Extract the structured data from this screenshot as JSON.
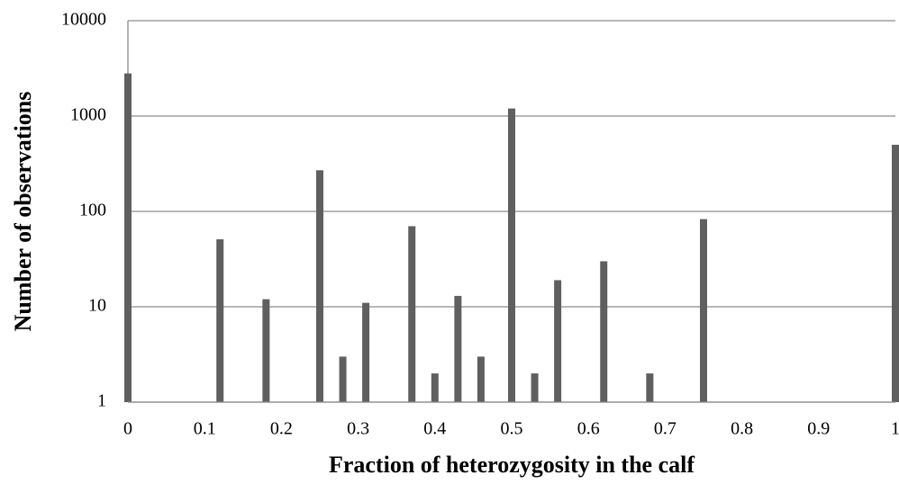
{
  "chart_data": {
    "type": "bar",
    "log_scale": true,
    "grid": true,
    "color": "#5f5f5f",
    "x_label": "Fraction of heterozygosity in the calf",
    "y_label": "Number of observations",
    "x": [
      0,
      0.12,
      0.18,
      0.25,
      0.28,
      0.31,
      0.37,
      0.4,
      0.43,
      0.46,
      0.5,
      0.53,
      0.56,
      0.62,
      0.68,
      0.75,
      1
    ],
    "values": [
      2800,
      51,
      12,
      270,
      3,
      11,
      70,
      2,
      13,
      3,
      1200,
      2,
      19,
      30,
      2,
      83,
      500
    ],
    "xlim": [
      0,
      1
    ],
    "xticks": [
      0,
      0.1,
      0.2,
      0.3,
      0.4,
      0.5,
      0.6,
      0.7,
      0.8,
      0.9,
      1
    ],
    "ylim": [
      1,
      10000
    ],
    "yticks": [
      1,
      10,
      100,
      1000,
      10000
    ]
  }
}
